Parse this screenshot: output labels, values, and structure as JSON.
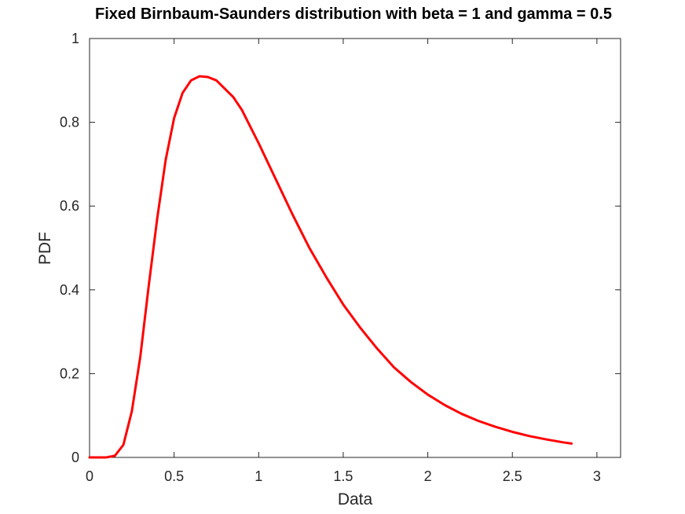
{
  "chart_data": {
    "type": "line",
    "title": "Fixed Birnbaum-Saunders distribution with beta = 1 and gamma = 0.5",
    "xlabel": "Data",
    "ylabel": "PDF",
    "xlim": [
      0,
      3.14
    ],
    "ylim": [
      0,
      1
    ],
    "xticks": [
      {
        "value": 0,
        "label": "0"
      },
      {
        "value": 0.5,
        "label": "0.5"
      },
      {
        "value": 1,
        "label": "1"
      },
      {
        "value": 1.5,
        "label": "1.5"
      },
      {
        "value": 2,
        "label": "2"
      },
      {
        "value": 2.5,
        "label": "2.5"
      },
      {
        "value": 3,
        "label": "3"
      }
    ],
    "yticks": [
      {
        "value": 0,
        "label": "0"
      },
      {
        "value": 0.2,
        "label": "0.2"
      },
      {
        "value": 0.4,
        "label": "0.4"
      },
      {
        "value": 0.6,
        "label": "0.6"
      },
      {
        "value": 0.8,
        "label": "0.8"
      },
      {
        "value": 1,
        "label": "1"
      }
    ],
    "grid": false,
    "box": true,
    "series": [
      {
        "color": "#ff0000",
        "x": [
          0,
          0.1,
          0.15,
          0.2,
          0.25,
          0.3,
          0.35,
          0.4,
          0.45,
          0.5,
          0.55,
          0.6,
          0.65,
          0.7,
          0.75,
          0.8,
          0.85,
          0.9,
          0.95,
          1.0,
          1.1,
          1.2,
          1.3,
          1.4,
          1.5,
          1.6,
          1.7,
          1.8,
          1.9,
          2.0,
          2.1,
          2.2,
          2.3,
          2.4,
          2.5,
          2.6,
          2.7,
          2.8,
          2.85
        ],
        "y": [
          0,
          0.0001,
          0.004,
          0.03,
          0.11,
          0.24,
          0.41,
          0.57,
          0.71,
          0.81,
          0.87,
          0.9,
          0.91,
          0.908,
          0.9,
          0.88,
          0.86,
          0.83,
          0.79,
          0.75,
          0.665,
          0.58,
          0.5,
          0.43,
          0.365,
          0.31,
          0.26,
          0.215,
          0.18,
          0.15,
          0.125,
          0.104,
          0.087,
          0.073,
          0.061,
          0.051,
          0.043,
          0.036,
          0.033
        ]
      }
    ]
  }
}
